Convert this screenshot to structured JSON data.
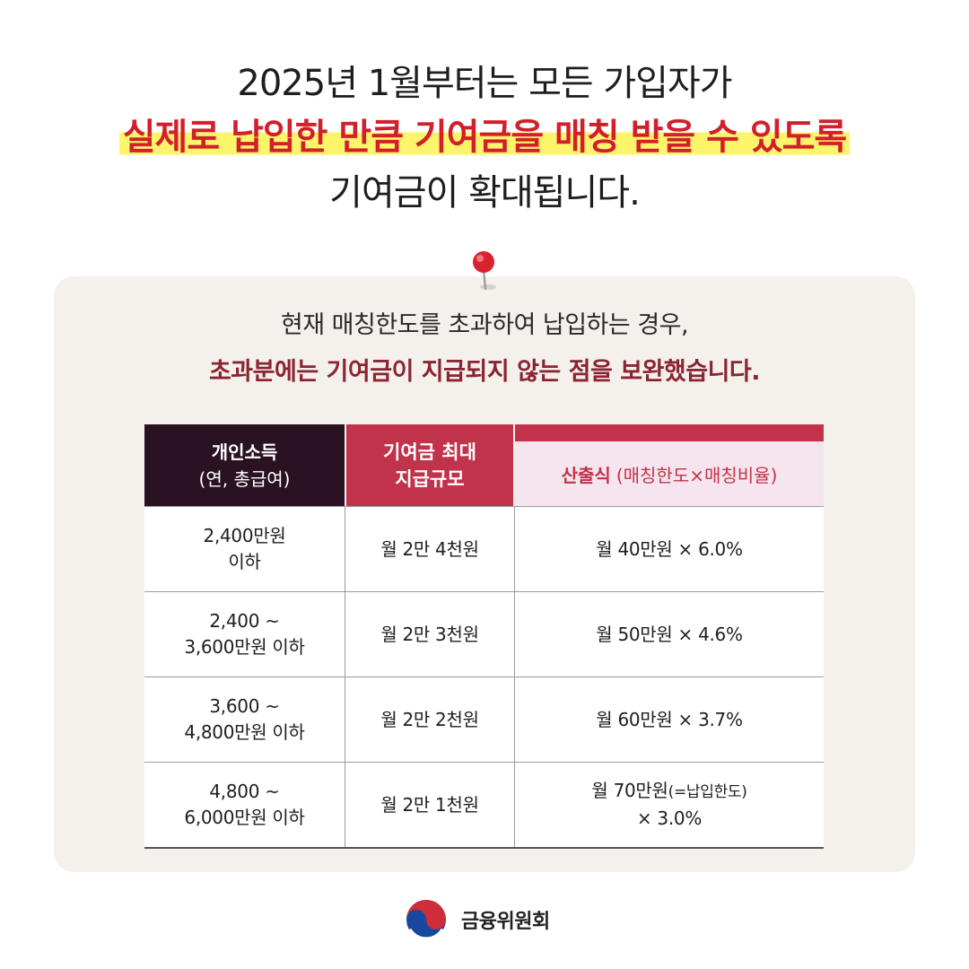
{
  "headline": {
    "line1": "2025년 1월부터는 모든 가입자가",
    "line2": "실제로 납입한 만큼 기여금을 매칭 받을 수 있도록",
    "line3": "기여금이 확대됩니다."
  },
  "panel": {
    "line1": "현재 매칭한도를 초과하여 납입하는 경우,",
    "line2": "초과분에는 기여금이 지급되지 않는 점을 보완했습니다."
  },
  "table": {
    "headers": {
      "col1_main": "개인소득",
      "col1_sub": "(연, 총급여)",
      "col2": "기여금 최대\n지급규모",
      "col3_main": "산출식",
      "col3_sub": "(매칭한도×매칭비율)"
    },
    "rows": [
      {
        "income": "2,400만원\n이하",
        "max": "월 2만 4천원",
        "formula": "월 40만원 × 6.0%"
      },
      {
        "income": "2,400 ~\n3,600만원 이하",
        "max": "월 2만 3천원",
        "formula": "월 50만원 × 4.6%"
      },
      {
        "income": "3,600 ~\n4,800만원 이하",
        "max": "월 2만 2천원",
        "formula": "월 60만원 × 3.7%"
      },
      {
        "income": "4,800 ~\n6,000만원 이하",
        "max": "월 2만 1천원",
        "formula_main": "월 70만원",
        "formula_note": "(=납입한도)",
        "formula_tail": "× 3.0%"
      }
    ]
  },
  "footer": {
    "org": "금융위원회"
  },
  "icons": {
    "pin": "pushpin-icon",
    "emblem": "taegeuk-emblem"
  },
  "colors": {
    "highlight_text": "#d21f2b",
    "highlight_bg": "#fcf46b",
    "header_dark": "#2a1222",
    "header_red": "#c1334b",
    "panel_bg": "#f4f1ec"
  }
}
